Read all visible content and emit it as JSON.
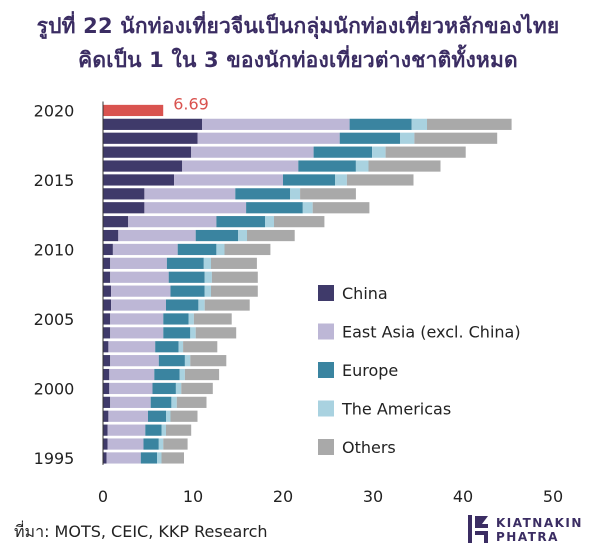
{
  "header": {
    "title_line1": "รูปที่ 22 นักท่องเที่ยวจีนเป็นกลุ่มนักท่องเที่ยวหลักของไทย",
    "title_line2": "คิดเป็น 1 ใน 3 ของนักท่องเที่ยวต่างชาติทั้งหมด"
  },
  "footer": {
    "source": "ที่มา: MOTS, CEIC, KKP Research",
    "logo_line1": "KIATNAKIN",
    "logo_line2": "PHATRA"
  },
  "colors": {
    "china": "#3f3a6a",
    "east_asia": "#bdb7d6",
    "europe": "#3a84a0",
    "americas": "#a9d2e0",
    "others": "#a9a9a9",
    "highlight": "#d9534f"
  },
  "chart_data": {
    "type": "bar",
    "orientation": "horizontal",
    "stacked": true,
    "categories": [
      "1995",
      "1996",
      "1997",
      "1998",
      "1999",
      "2000",
      "2001",
      "2002",
      "2003",
      "2004",
      "2005",
      "2006",
      "2007",
      "2008",
      "2009",
      "2010",
      "2011",
      "2012",
      "2013",
      "2014",
      "2015",
      "2016",
      "2017",
      "2018",
      "2019",
      "2020"
    ],
    "series": [
      {
        "name": "China",
        "values": [
          0.4,
          0.5,
          0.5,
          0.6,
          0.8,
          0.7,
          0.7,
          0.8,
          0.6,
          0.8,
          0.8,
          0.9,
          0.9,
          0.8,
          0.8,
          1.1,
          1.7,
          2.8,
          4.6,
          4.6,
          7.9,
          8.8,
          9.8,
          10.5,
          11.0,
          0
        ]
      },
      {
        "name": "East Asia (excl. China)",
        "values": [
          3.8,
          4.0,
          4.2,
          4.4,
          4.5,
          4.8,
          5.0,
          5.4,
          5.2,
          5.9,
          5.9,
          6.1,
          6.6,
          6.5,
          6.3,
          7.2,
          8.6,
          9.8,
          11.3,
          10.1,
          12.1,
          12.9,
          13.6,
          15.8,
          16.4,
          0
        ]
      },
      {
        "name": "Europe",
        "values": [
          1.8,
          1.7,
          1.8,
          2.0,
          2.3,
          2.6,
          2.8,
          2.9,
          2.6,
          3.0,
          2.8,
          3.6,
          3.8,
          4.0,
          4.1,
          4.3,
          4.7,
          5.4,
          6.3,
          6.1,
          5.8,
          6.4,
          6.5,
          6.7,
          6.9,
          0
        ]
      },
      {
        "name": "The Americas",
        "values": [
          0.5,
          0.5,
          0.5,
          0.5,
          0.6,
          0.6,
          0.6,
          0.6,
          0.5,
          0.6,
          0.6,
          0.7,
          0.7,
          0.8,
          0.8,
          0.9,
          1.0,
          1.0,
          1.1,
          1.1,
          1.3,
          1.4,
          1.5,
          1.6,
          1.7,
          0
        ]
      },
      {
        "name": "Others",
        "values": [
          2.5,
          2.7,
          2.8,
          3.0,
          3.3,
          3.5,
          3.8,
          4.0,
          3.8,
          4.5,
          4.2,
          5.0,
          5.2,
          5.1,
          5.1,
          5.1,
          5.3,
          5.6,
          6.3,
          6.2,
          7.4,
          8.0,
          8.9,
          9.2,
          9.4,
          0
        ]
      }
    ],
    "annotation": {
      "category": "2020",
      "value": 6.69,
      "label": "6.69"
    },
    "xlim": [
      0,
      50
    ],
    "xticks": [
      "0",
      "10",
      "20",
      "30",
      "40",
      "50"
    ],
    "yticks": [
      "1995",
      "2000",
      "2005",
      "2010",
      "2015",
      "2020"
    ],
    "grid": false,
    "legend_position": "right"
  }
}
